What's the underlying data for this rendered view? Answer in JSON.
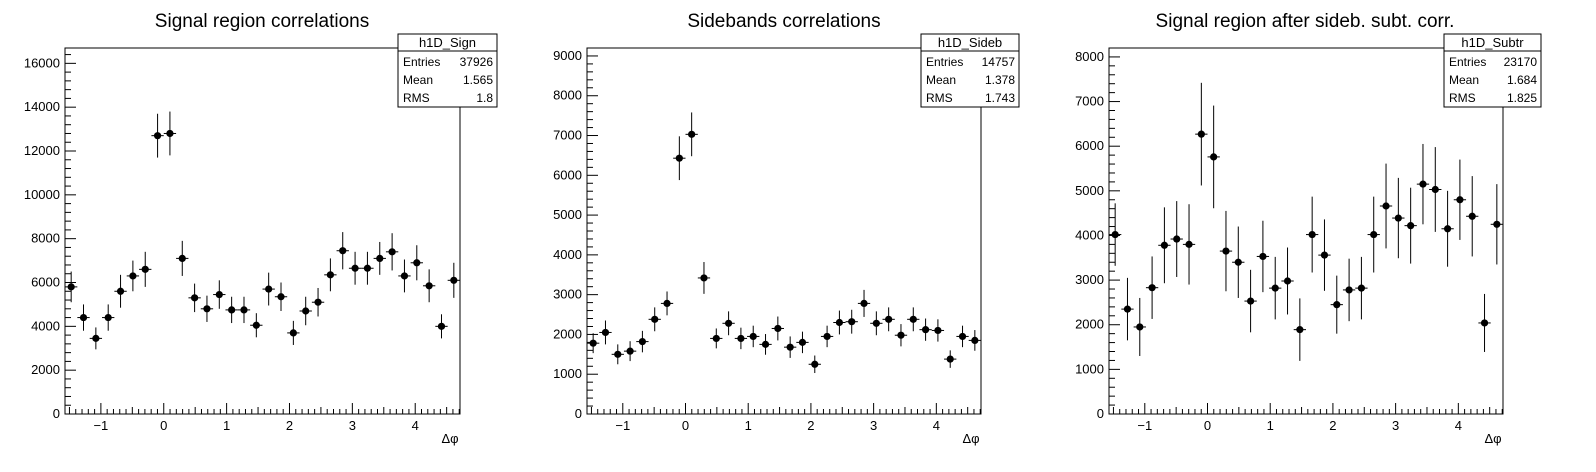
{
  "chart_data": [
    {
      "type": "scatter",
      "title": "Signal region correlations",
      "xlabel": "Δφ",
      "ylabel": "",
      "xlim": [
        -1.5708,
        4.7124
      ],
      "ylim": [
        0,
        16700
      ],
      "x_ticks": [
        -1,
        0,
        1,
        2,
        3,
        4
      ],
      "y_ticks": [
        0,
        2000,
        4000,
        6000,
        8000,
        10000,
        12000,
        14000,
        16000
      ],
      "grid": false,
      "stats_box": {
        "name": "h1D_Sign",
        "entries": "37926",
        "mean": "1.565",
        "rms": "1.8",
        "entries_label": "Entries",
        "mean_label": "Mean",
        "rms_label": "RMS"
      },
      "series": [
        {
          "values": [
            5800,
            4400,
            3450,
            4400,
            5600,
            6300,
            6600,
            12700,
            12800,
            7100,
            5300,
            4800,
            5450,
            4750,
            4750,
            4050,
            5700,
            5350,
            3700,
            4700,
            5100,
            6350,
            7450,
            6650,
            6650,
            7100,
            7400,
            6300,
            6900,
            5850,
            4000,
            6100
          ],
          "errors": [
            700,
            600,
            500,
            600,
            750,
            700,
            800,
            1000,
            1000,
            800,
            650,
            600,
            650,
            600,
            600,
            550,
            750,
            650,
            550,
            650,
            650,
            750,
            850,
            750,
            750,
            750,
            850,
            750,
            800,
            750,
            550,
            800
          ]
        }
      ]
    },
    {
      "type": "scatter",
      "title": "Sidebands correlations",
      "xlabel": "Δφ",
      "ylabel": "",
      "xlim": [
        -1.5708,
        4.7124
      ],
      "ylim": [
        0,
        9200
      ],
      "x_ticks": [
        -1,
        0,
        1,
        2,
        3,
        4
      ],
      "y_ticks": [
        0,
        1000,
        2000,
        3000,
        4000,
        5000,
        6000,
        7000,
        8000,
        9000
      ],
      "grid": false,
      "stats_box": {
        "name": "h1D_Sideb",
        "entries": "14757",
        "mean": "1.378",
        "rms": "1.743",
        "entries_label": "Entries",
        "mean_label": "Mean",
        "rms_label": "RMS"
      },
      "series": [
        {
          "values": [
            1780,
            2050,
            1500,
            1580,
            1820,
            2380,
            2780,
            6430,
            7030,
            3420,
            1900,
            2280,
            1900,
            1950,
            1750,
            2150,
            1680,
            1800,
            1250,
            1950,
            2300,
            2320,
            2780,
            2280,
            2380,
            1980,
            2380,
            2120,
            2100,
            1380,
            1950,
            1850
          ],
          "errors": [
            250,
            300,
            250,
            250,
            270,
            300,
            300,
            550,
            550,
            400,
            250,
            300,
            270,
            270,
            260,
            300,
            270,
            270,
            220,
            270,
            300,
            300,
            340,
            300,
            300,
            280,
            300,
            280,
            280,
            220,
            270,
            260
          ]
        }
      ]
    },
    {
      "type": "scatter",
      "title": "Signal region after sideb. subt. corr.",
      "xlabel": "Δφ",
      "ylabel": "",
      "xlim": [
        -1.5708,
        4.7124
      ],
      "ylim": [
        0,
        8200
      ],
      "x_ticks": [
        -1,
        0,
        1,
        2,
        3,
        4
      ],
      "y_ticks": [
        0,
        1000,
        2000,
        3000,
        4000,
        5000,
        6000,
        7000,
        8000
      ],
      "grid": false,
      "stats_box": {
        "name": "h1D_Subtr",
        "entries": "23170",
        "mean": "1.684",
        "rms": "1.825",
        "entries_label": "Entries",
        "mean_label": "Mean",
        "rms_label": "RMS"
      },
      "series": [
        {
          "values": [
            4020,
            2350,
            1950,
            2830,
            3780,
            3920,
            3800,
            6270,
            5760,
            3650,
            3400,
            2530,
            3530,
            2820,
            2980,
            1890,
            4020,
            3560,
            2450,
            2780,
            2820,
            4020,
            4660,
            4390,
            4220,
            5150,
            5030,
            4150,
            4800,
            4430,
            2040,
            4250
          ],
          "errors": [
            700,
            700,
            650,
            700,
            850,
            850,
            900,
            1150,
            1150,
            900,
            800,
            700,
            800,
            700,
            750,
            700,
            850,
            800,
            650,
            700,
            700,
            850,
            950,
            900,
            850,
            900,
            950,
            850,
            900,
            900,
            650,
            900
          ]
        }
      ]
    }
  ]
}
